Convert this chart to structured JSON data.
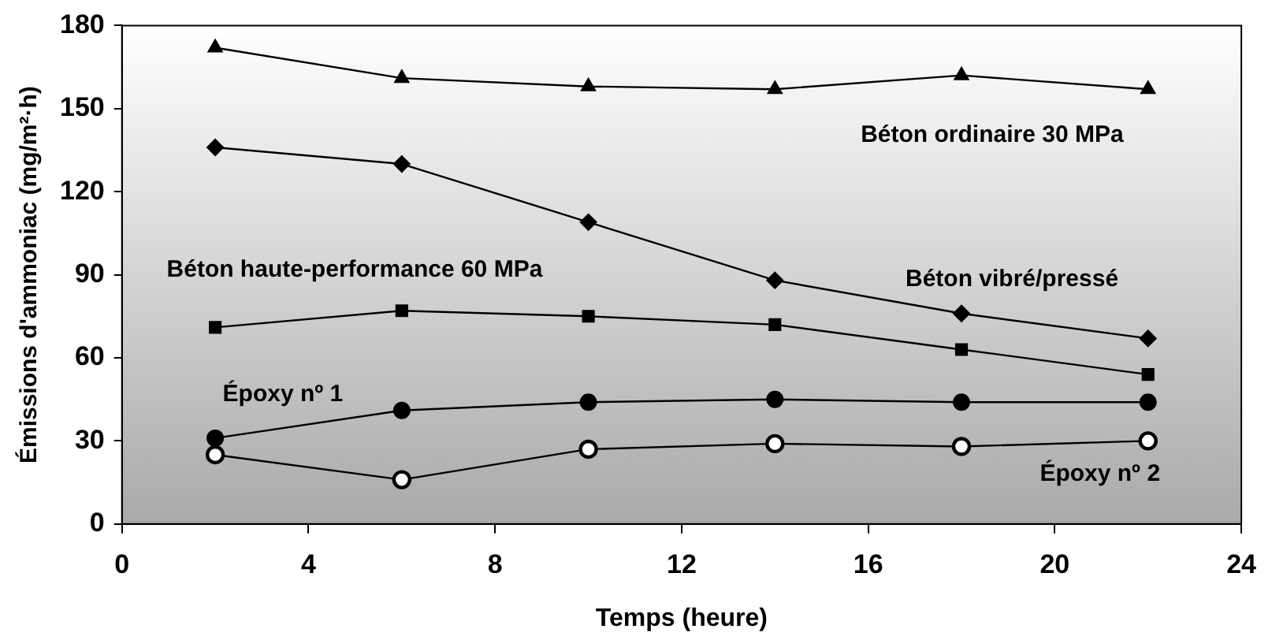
{
  "chart_data": {
    "type": "line",
    "xlabel": "Temps (heure)",
    "ylabel": "Émissions d'ammoniac (mg/m²·h)",
    "x": [
      2,
      6,
      10,
      14,
      18,
      22
    ],
    "series": [
      {
        "name": "Béton ordinaire 30 MPa",
        "color": "#000000",
        "marker": "triangle",
        "values": [
          172,
          161,
          158,
          157,
          162,
          157
        ]
      },
      {
        "name": "Béton vibré/pressé",
        "color": "#000000",
        "marker": "diamond",
        "values": [
          136,
          130,
          109,
          88,
          76,
          67
        ]
      },
      {
        "name": "Béton haute-performance 60 MPa",
        "color": "#000000",
        "marker": "square",
        "values": [
          71,
          77,
          75,
          72,
          63,
          54
        ]
      },
      {
        "name": "Époxy nº 1",
        "color": "#000000",
        "marker": "circle",
        "values": [
          31,
          41,
          44,
          45,
          44,
          44
        ]
      },
      {
        "name": "Époxy nº 2",
        "color": "#000000",
        "marker": "circle",
        "values": [
          25,
          16,
          27,
          29,
          28,
          30
        ]
      }
    ],
    "xlim": [
      0,
      24
    ],
    "xticks": [
      0,
      4,
      8,
      12,
      16,
      20,
      24
    ],
    "ylim": [
      0,
      180
    ],
    "yticks": [
      0,
      30,
      60,
      90,
      120,
      150,
      180
    ],
    "grid": false,
    "legend": false,
    "line_style": "solid"
  }
}
